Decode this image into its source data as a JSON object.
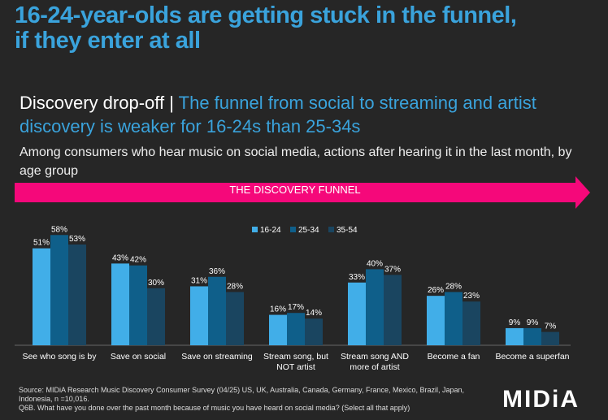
{
  "title": "16-24-year-olds are getting stuck in the funnel, if they enter at all",
  "subtitle_bold": "Discovery drop-off | ",
  "subtitle_rest": "The funnel from social to streaming and artist discovery is weaker for 16-24s than 25-34s",
  "description": "Among consumers who hear music on social media, actions after hearing it in the last month, by age group",
  "funnel_label": "THE DISCOVERY FUNNEL",
  "colors": {
    "background": "#262626",
    "accent": "#3aa3dc",
    "funnel": "#f5087a"
  },
  "source": "Source: MIDiA Research Music Discovery Consumer Survey (04/25) US, UK, Australia, Canada, Germany, France, Mexico, Brazil, Japan, Indonesia, n =10,016.",
  "question": "Q6B. What have you done over the past month because of music you have heard on social media? (Select all that apply)",
  "logo": "MIDiA",
  "chart_data": {
    "type": "bar",
    "categories": [
      "See who song is by",
      "Save on social",
      "Save on streaming",
      "Stream song, but NOT artist",
      "Stream song AND more of artist",
      "Become a fan",
      "Become a superfan"
    ],
    "series": [
      {
        "name": "16-24",
        "color": "#41aee8",
        "values": [
          51,
          43,
          31,
          16,
          33,
          26,
          9
        ]
      },
      {
        "name": "25-34",
        "color": "#0f5f8a",
        "values": [
          58,
          42,
          36,
          17,
          40,
          28,
          9
        ]
      },
      {
        "name": "35-54",
        "color": "#1a4560",
        "values": [
          53,
          30,
          28,
          14,
          37,
          23,
          7
        ]
      }
    ],
    "value_format": "%",
    "legend": "top-center",
    "grid": false
  }
}
